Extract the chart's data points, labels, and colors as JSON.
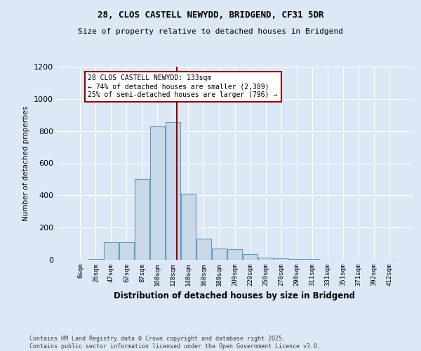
{
  "title1": "28, CLOS CASTELL NEWYDD, BRIDGEND, CF31 5DR",
  "title2": "Size of property relative to detached houses in Bridgend",
  "xlabel": "Distribution of detached houses by size in Bridgend",
  "ylabel": "Number of detached properties",
  "categories": [
    "6sqm",
    "26sqm",
    "47sqm",
    "67sqm",
    "87sqm",
    "108sqm",
    "128sqm",
    "148sqm",
    "168sqm",
    "189sqm",
    "209sqm",
    "229sqm",
    "250sqm",
    "270sqm",
    "290sqm",
    "311sqm",
    "331sqm",
    "351sqm",
    "371sqm",
    "392sqm",
    "412sqm"
  ],
  "values": [
    2,
    5,
    110,
    110,
    500,
    830,
    855,
    410,
    130,
    70,
    65,
    35,
    15,
    8,
    5,
    5,
    2,
    2,
    2,
    2,
    2
  ],
  "bar_color": "#c8d8e8",
  "bar_edge_color": "#6699bb",
  "vline_color": "#8b0000",
  "annotation_text": "28 CLOS CASTELL NEWYDD: 133sqm\n← 74% of detached houses are smaller (2,389)\n25% of semi-detached houses are larger (796) →",
  "annotation_box_color": "#ffffff",
  "annotation_box_edge": "#8b0000",
  "ylim": [
    0,
    1200
  ],
  "yticks": [
    0,
    200,
    400,
    600,
    800,
    1000,
    1200
  ],
  "background_color": "#dce8f5",
  "footer": "Contains HM Land Registry data © Crown copyright and database right 2025.\nContains public sector information licensed under the Open Government Licence v3.0.",
  "grid_color": "#ffffff"
}
